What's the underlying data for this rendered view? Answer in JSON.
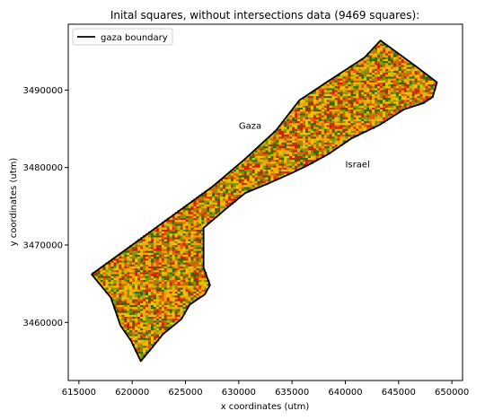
{
  "chart_data": {
    "type": "scatter",
    "title": "Inital squares, without intersections data (9469 squares):",
    "xlabel": "x coordinates (utm)",
    "ylabel": "y coordinates (utm)",
    "xlim": [
      614000,
      651000
    ],
    "ylim": [
      3452500,
      3498500
    ],
    "xticks": [
      615000,
      620000,
      625000,
      630000,
      635000,
      640000,
      645000,
      650000
    ],
    "yticks": [
      3460000,
      3470000,
      3480000,
      3490000
    ],
    "xtick_labels": [
      "615000",
      "620000",
      "625000",
      "630000",
      "635000",
      "640000",
      "645000",
      "650000"
    ],
    "ytick_labels": [
      "3460000",
      "3470000",
      "3480000",
      "3490000"
    ],
    "grid": false,
    "legend_position": "top-left",
    "legend_entries": [
      {
        "name": "gaza boundary",
        "color": "#000000"
      }
    ],
    "square_count": 9469,
    "square_size_m": 250,
    "square_colors": [
      "#cc2200",
      "#e05a00",
      "#e8a800",
      "#f2c200",
      "#7a9a00",
      "#2d6b00"
    ],
    "boundary_color": "#000000",
    "annotations": [
      {
        "text": "Gaza",
        "x": 630000,
        "y": 3485000
      },
      {
        "text": "Israel",
        "x": 640000,
        "y": 3480000
      }
    ],
    "boundary_polygon": [
      [
        616200,
        3466200
      ],
      [
        620000,
        3470000
      ],
      [
        624000,
        3474000
      ],
      [
        627500,
        3477500
      ],
      [
        630500,
        3481000
      ],
      [
        633500,
        3484800
      ],
      [
        635700,
        3488700
      ],
      [
        638000,
        3490800
      ],
      [
        641800,
        3494200
      ],
      [
        643300,
        3496400
      ],
      [
        646600,
        3493100
      ],
      [
        648600,
        3491000
      ],
      [
        648200,
        3489100
      ],
      [
        647300,
        3488300
      ],
      [
        645500,
        3487500
      ],
      [
        643200,
        3485500
      ],
      [
        640500,
        3483700
      ],
      [
        638500,
        3481800
      ],
      [
        636500,
        3480300
      ],
      [
        635000,
        3479300
      ],
      [
        632700,
        3477900
      ],
      [
        630600,
        3476700
      ],
      [
        629000,
        3474900
      ],
      [
        626700,
        3472200
      ],
      [
        626700,
        3467100
      ],
      [
        627300,
        3464800
      ],
      [
        626800,
        3463600
      ],
      [
        625400,
        3462300
      ],
      [
        624600,
        3460400
      ],
      [
        622900,
        3458500
      ],
      [
        621900,
        3456800
      ],
      [
        620800,
        3455000
      ],
      [
        619900,
        3457600
      ],
      [
        618900,
        3459600
      ],
      [
        618000,
        3463200
      ],
      [
        616200,
        3466200
      ]
    ]
  }
}
